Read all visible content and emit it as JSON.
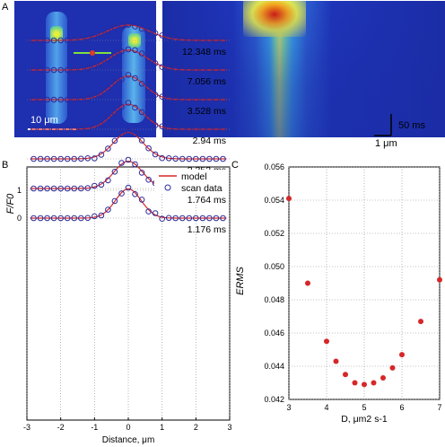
{
  "panel_labels": {
    "a": "A",
    "b": "B",
    "c": "C"
  },
  "image_panel": {
    "scale_bar_label": "10 μm",
    "time_bar_label": "50 ms",
    "distance_bar_label": "1 μm"
  },
  "chart_data": [
    {
      "type": "line",
      "panel": "B",
      "ylabel": "F/F0",
      "xlabel": "Distance, μm",
      "xlim": [
        -3,
        3
      ],
      "xticks": [
        "-3",
        "-2",
        "-1",
        "0",
        "1",
        "2",
        "3"
      ],
      "yticks": [
        "0",
        "1"
      ],
      "grid": true,
      "legend": {
        "placement": "top-right",
        "entries": [
          "model",
          "scan data"
        ]
      },
      "x": [
        -2.8,
        -2.6,
        -2.4,
        -2.2,
        -2.0,
        -1.8,
        -1.6,
        -1.4,
        -1.2,
        -1.0,
        -0.8,
        -0.6,
        -0.4,
        -0.2,
        0.0,
        0.2,
        0.4,
        0.6,
        0.8,
        1.0,
        1.2,
        1.4,
        1.6,
        1.8,
        2.0,
        2.2,
        2.4,
        2.6,
        2.8
      ],
      "series": [
        {
          "name": "1.176 ms",
          "offset": 0,
          "peak": 1.05,
          "width": 0.38,
          "color_model": "#d62728"
        },
        {
          "name": "1.764 ms",
          "offset": -1,
          "peak": 0.98,
          "width": 0.42,
          "color_model": "#d62728"
        },
        {
          "name": "2.352 ms",
          "offset": -2,
          "peak": 0.95,
          "width": 0.44,
          "color_model": "#d62728"
        },
        {
          "name": "2.94 ms",
          "offset": -3,
          "peak": 0.9,
          "width": 0.46,
          "color_model": "#d62728"
        },
        {
          "name": "3.528 ms",
          "offset": -4,
          "peak": 0.85,
          "width": 0.48,
          "color_model": "#d62728"
        },
        {
          "name": "7.056 ms",
          "offset": -5,
          "peak": 0.72,
          "width": 0.55,
          "color_model": "#d62728"
        },
        {
          "name": "12.348 ms",
          "offset": -6,
          "peak": 0.55,
          "width": 0.62,
          "color_model": "#d62728"
        }
      ],
      "marker_color": "#2b2b9a"
    },
    {
      "type": "scatter",
      "panel": "C",
      "xlabel": "D, μm2 s-1",
      "ylabel": "ERMS",
      "xlim": [
        3,
        7
      ],
      "ylim": [
        0.042,
        0.056
      ],
      "xticks": [
        "3",
        "4",
        "5",
        "6",
        "7"
      ],
      "yticks": [
        "0.042",
        "0.044",
        "0.046",
        "0.048",
        "0.050",
        "0.052",
        "0.054",
        "0.056"
      ],
      "grid": true,
      "x": [
        3.0,
        3.5,
        4.0,
        4.25,
        4.5,
        4.75,
        5.0,
        5.25,
        5.5,
        5.75,
        6.0,
        6.5,
        7.0
      ],
      "y": [
        0.0541,
        0.049,
        0.0455,
        0.0443,
        0.0435,
        0.043,
        0.0429,
        0.043,
        0.0433,
        0.0439,
        0.0447,
        0.0467,
        0.0492
      ],
      "marker_color": "#d62728"
    }
  ]
}
